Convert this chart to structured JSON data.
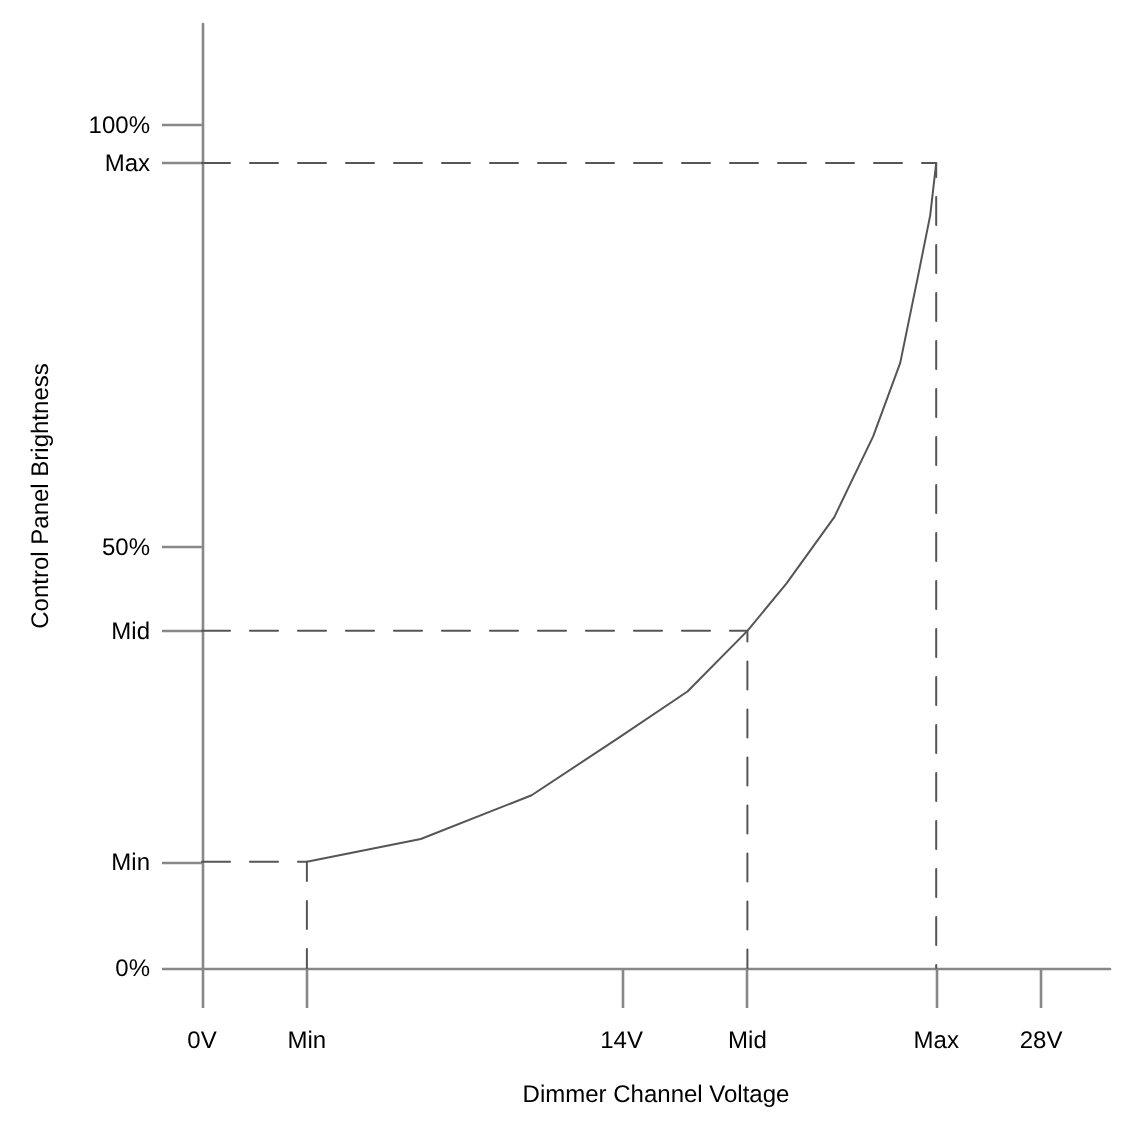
{
  "chart_data": {
    "type": "line",
    "xlabel": "Dimmer Channel Voltage",
    "ylabel": "Control Panel Brightness",
    "xlim": [
      0,
      30.3
    ],
    "ylim": [
      0,
      112
    ],
    "xticks": [
      {
        "value": 0,
        "label": "0V"
      },
      {
        "value": 3.5,
        "label": "Min"
      },
      {
        "value": 14,
        "label": "14V"
      },
      {
        "value": 18.2,
        "label": "Mid"
      },
      {
        "value": 24.5,
        "label": "Max"
      },
      {
        "value": 28,
        "label": "28V"
      }
    ],
    "yticks": [
      {
        "value": 0,
        "label": "0%"
      },
      {
        "value": 12.6,
        "label": "Min"
      },
      {
        "value": 40,
        "label": "Mid"
      },
      {
        "value": 50,
        "label": "50%"
      },
      {
        "value": 95.5,
        "label": "Max"
      },
      {
        "value": 100,
        "label": "100%"
      }
    ],
    "marker": "none",
    "grid": false,
    "series": [
      {
        "color": "#555555",
        "line_style": "solid",
        "x": [
          3.5,
          7.3,
          11.0,
          13.9,
          16.2,
          18.2,
          19.5,
          21.1,
          22.4,
          23.3,
          23.9,
          24.3,
          24.5
        ],
        "values": [
          12.6,
          15.3,
          20.5,
          27.3,
          32.8,
          40,
          45.6,
          53.5,
          63.1,
          71.8,
          82.2,
          89.3,
          95.5
        ]
      },
      {
        "color": "#555555",
        "line_style": "dashed",
        "x": [
          0,
          3.5,
          3.5
        ],
        "values": [
          12.6,
          12.6,
          0
        ]
      },
      {
        "color": "#555555",
        "line_style": "dashed",
        "x": [
          0,
          18.2,
          18.2
        ],
        "values": [
          40,
          40,
          0
        ]
      },
      {
        "color": "#555555",
        "line_style": "dashed",
        "x": [
          0,
          24.5,
          24.5
        ],
        "values": [
          95.5,
          95.5,
          0
        ]
      }
    ]
  }
}
